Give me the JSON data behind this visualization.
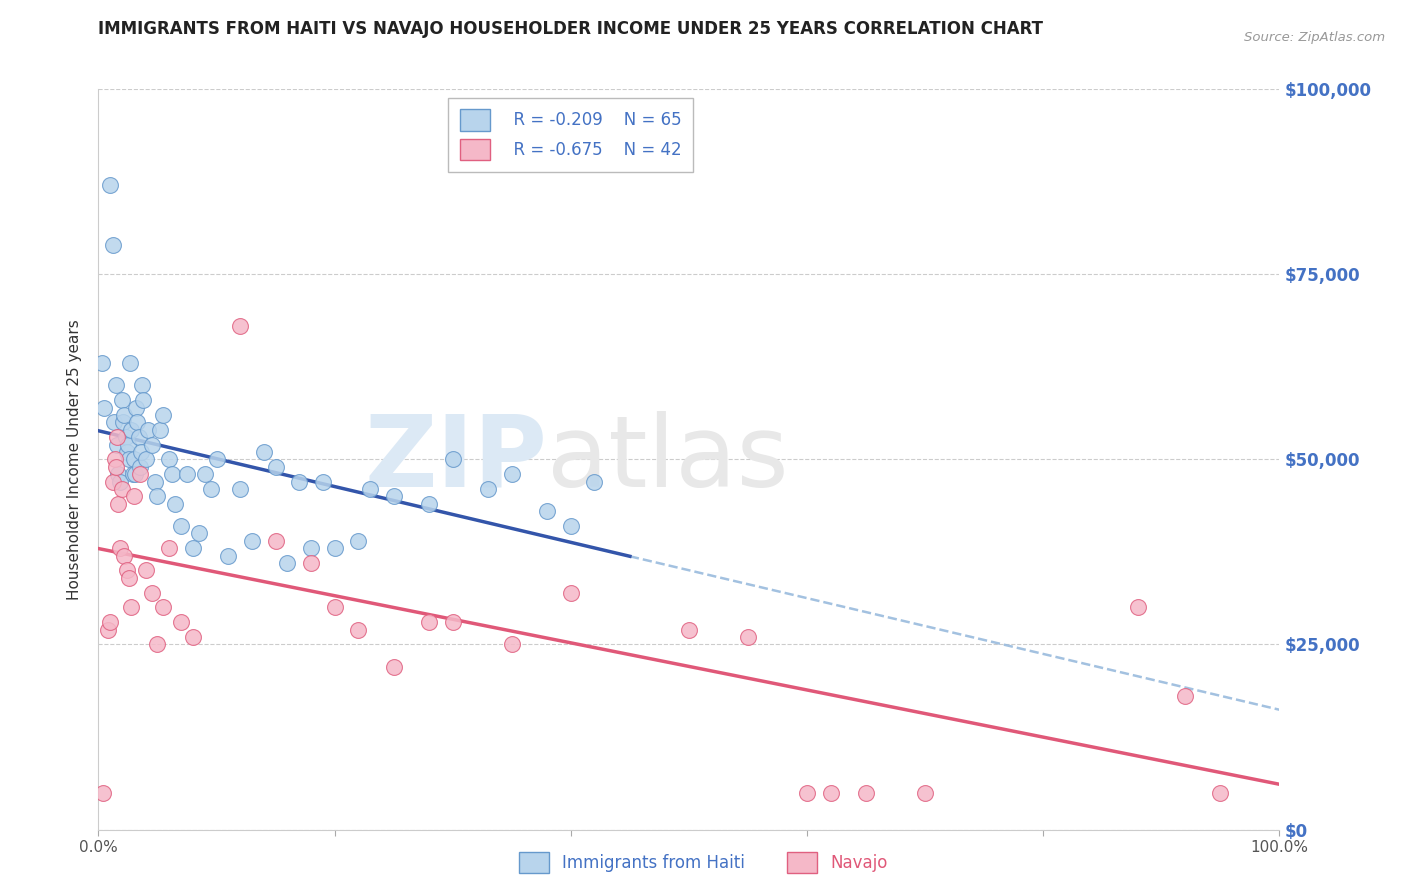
{
  "title": "IMMIGRANTS FROM HAITI VS NAVAJO HOUSEHOLDER INCOME UNDER 25 YEARS CORRELATION CHART",
  "source": "Source: ZipAtlas.com",
  "ylabel": "Householder Income Under 25 years",
  "ytick_labels": [
    "$0",
    "$25,000",
    "$50,000",
    "$75,000",
    "$100,000"
  ],
  "ytick_values": [
    0,
    25000,
    50000,
    75000,
    100000
  ],
  "xlim": [
    0.0,
    100.0
  ],
  "ylim": [
    0,
    100000
  ],
  "legend_r1": "R = -0.209",
  "legend_n1": "N = 65",
  "legend_r2": "R = -0.675",
  "legend_n2": "N = 42",
  "color_haiti_fill": "#b8d4ec",
  "color_haiti_edge": "#6699cc",
  "color_navajo_fill": "#f5b8c8",
  "color_navajo_edge": "#e06080",
  "color_line_haiti": "#3355aa",
  "color_line_navajo": "#e05878",
  "color_line_haiti_dash": "#99bbdd",
  "color_axis_right": "#4472c4",
  "haiti_max_x": 45.0,
  "haiti_points_x": [
    0.3,
    0.5,
    1.0,
    1.2,
    1.3,
    1.5,
    1.6,
    1.7,
    1.8,
    2.0,
    2.1,
    2.2,
    2.3,
    2.4,
    2.5,
    2.6,
    2.7,
    2.8,
    2.9,
    3.0,
    3.1,
    3.2,
    3.3,
    3.4,
    3.5,
    3.6,
    3.7,
    3.8,
    4.0,
    4.2,
    4.5,
    4.8,
    5.0,
    5.2,
    5.5,
    6.0,
    6.2,
    6.5,
    7.0,
    7.5,
    8.0,
    8.5,
    9.0,
    9.5,
    10.0,
    11.0,
    12.0,
    13.0,
    14.0,
    15.0,
    16.0,
    17.0,
    18.0,
    19.0,
    20.0,
    22.0,
    23.0,
    25.0,
    28.0,
    30.0,
    33.0,
    35.0,
    38.0,
    40.0,
    42.0
  ],
  "haiti_points_y": [
    63000,
    57000,
    87000,
    79000,
    55000,
    60000,
    52000,
    48000,
    47000,
    58000,
    55000,
    56000,
    53000,
    51000,
    52000,
    50000,
    63000,
    54000,
    48000,
    50000,
    48000,
    57000,
    55000,
    53000,
    49000,
    51000,
    60000,
    58000,
    50000,
    54000,
    52000,
    47000,
    45000,
    54000,
    56000,
    50000,
    48000,
    44000,
    41000,
    48000,
    38000,
    40000,
    48000,
    46000,
    50000,
    37000,
    46000,
    39000,
    51000,
    49000,
    36000,
    47000,
    38000,
    47000,
    38000,
    39000,
    46000,
    45000,
    44000,
    50000,
    46000,
    48000,
    43000,
    41000,
    47000
  ],
  "navajo_points_x": [
    0.4,
    0.8,
    1.0,
    1.2,
    1.4,
    1.5,
    1.6,
    1.7,
    1.8,
    2.0,
    2.2,
    2.4,
    2.6,
    2.8,
    3.0,
    3.5,
    4.0,
    4.5,
    5.0,
    5.5,
    6.0,
    7.0,
    8.0,
    12.0,
    15.0,
    18.0,
    20.0,
    22.0,
    25.0,
    28.0,
    30.0,
    35.0,
    40.0,
    50.0,
    55.0,
    60.0,
    62.0,
    65.0,
    70.0,
    88.0,
    92.0,
    95.0
  ],
  "navajo_points_y": [
    5000,
    27000,
    28000,
    47000,
    50000,
    49000,
    53000,
    44000,
    38000,
    46000,
    37000,
    35000,
    34000,
    30000,
    45000,
    48000,
    35000,
    32000,
    25000,
    30000,
    38000,
    28000,
    26000,
    68000,
    39000,
    36000,
    30000,
    27000,
    22000,
    28000,
    28000,
    25000,
    32000,
    27000,
    26000,
    5000,
    5000,
    5000,
    5000,
    30000,
    18000,
    5000
  ]
}
